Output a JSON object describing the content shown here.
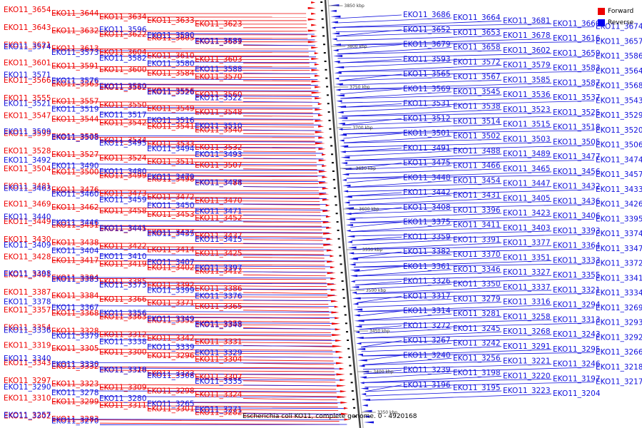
{
  "legend": {
    "items": [
      {
        "label": "Forward",
        "color": "#ee0000"
      },
      {
        "label": "Reverse",
        "color": "#0000ee"
      }
    ]
  },
  "caption": {
    "genome": "Escherichia coli KO11, complete genome.",
    "range": "0 - 4920168"
  },
  "colors": {
    "forward": "#ee0000",
    "reverse": "#1010dd",
    "axis": "#777777"
  },
  "scale_ticks": [
    "3850 kbp",
    "3800 kbp",
    "3750 kbp",
    "3700 kbp",
    "3650 kbp",
    "3600 kbp",
    "3550 kbp",
    "3500 kbp",
    "3450 kbp",
    "3400 kbp",
    "3350 kbp"
  ],
  "forward_genes": [
    "EKO11_3654",
    "EKO11_3644",
    "EKO11_3634",
    "EKO11_3633",
    "EKO11_3623",
    "EKO11_3643",
    "EKO11_3632",
    "EKO11_3622",
    "EKO11_3605",
    "EKO11_3631",
    "EKO11_3621",
    "EKO11_3613",
    "EKO11_3604",
    "EKO11_3610",
    "EKO11_3603",
    "EKO11_3601",
    "EKO11_3591",
    "EKO11_3600",
    "EKO11_3584",
    "EKO11_3570",
    "EKO11_3566",
    "EKO11_3563",
    "EKO11_3562",
    "EKO11_3556",
    "EKO11_3560",
    "EKO11_3555",
    "EKO11_3557",
    "EKO11_3550",
    "EKO11_3549",
    "EKO11_3548",
    "EKO11_3547",
    "EKO11_3544",
    "EKO11_3542",
    "EKO11_3541",
    "EKO11_3540",
    "EKO11_3539",
    "EKO11_3535",
    "EKO11_3534",
    "EKO11_3533",
    "EKO11_3532",
    "EKO11_3528",
    "EKO11_3527",
    "EKO11_3524",
    "EKO11_3511",
    "EKO11_3507",
    "EKO11_3504",
    "EKO11_3500",
    "EKO11_3499",
    "EKO11_3498",
    "EKO11_3484",
    "EKO11_3481",
    "EKO11_3476",
    "EKO11_3473",
    "EKO11_3472",
    "EKO11_3470",
    "EKO11_3469",
    "EKO11_3462",
    "EKO11_3458",
    "EKO11_3453",
    "EKO11_3452",
    "EKO11_3449",
    "EKO11_3451",
    "EKO11_3445",
    "EKO11_3427",
    "EKO11_3437",
    "EKO11_3430",
    "EKO11_3438",
    "EKO11_3422",
    "EKO11_3414",
    "EKO11_3425",
    "EKO11_3428",
    "EKO11_3417",
    "EKO11_3419",
    "EKO11_3402",
    "EKO11_3412",
    "EKO11_3401",
    "EKO11_3394",
    "EKO11_3385",
    "EKO11_3392",
    "EKO11_3386",
    "EKO11_3387",
    "EKO11_3384",
    "EKO11_3366",
    "EKO11_3371",
    "EKO11_3365",
    "EKO11_3357",
    "EKO11_3368",
    "EKO11_3363",
    "EKO11_3352",
    "EKO11_3353",
    "EKO11_3354",
    "EKO11_3328",
    "EKO11_3312",
    "EKO11_3342",
    "EKO11_3331",
    "EKO11_3319",
    "EKO11_3305",
    "EKO11_3300",
    "EKO11_3296",
    "EKO11_3304",
    "EKO11_3343",
    "EKO11_3332",
    "EKO11_3320",
    "EKO11_3322",
    "EKO11_3307",
    "EKO11_3297",
    "EKO11_3323",
    "EKO11_3309",
    "EKO11_3298",
    "EKO11_3324",
    "EKO11_3310",
    "EKO11_3299",
    "EKO11_3311",
    "EKO11_3301",
    "EKO11_3282",
    "EKO11_3302",
    "EKO11_3283"
  ],
  "reverse_genes": [
    "EKO11_3596",
    "EKO11_3590",
    "EKO11_3589",
    "EKO11_3574",
    "EKO11_3573",
    "EKO11_3582",
    "EKO11_3580",
    "EKO11_3588",
    "EKO11_3571",
    "EKO11_3576",
    "EKO11_3530",
    "EKO11_3526",
    "EKO11_3522",
    "EKO11_3521",
    "EKO11_3519",
    "EKO11_3517",
    "EKO11_3516",
    "EKO11_3510",
    "EKO11_3509",
    "EKO11_3508",
    "EKO11_3495",
    "EKO11_3494",
    "EKO11_3493",
    "EKO11_3492",
    "EKO11_3490",
    "EKO11_3480",
    "EKO11_3479",
    "EKO11_3478",
    "EKO11_3463",
    "EKO11_3460",
    "EKO11_3459",
    "EKO11_3450",
    "EKO11_3471",
    "EKO11_3440",
    "EKO11_3446",
    "EKO11_3441",
    "EKO11_3435",
    "EKO11_3415",
    "EKO11_3409",
    "EKO11_3404",
    "EKO11_3410",
    "EKO11_3407",
    "EKO11_3397",
    "EKO11_3398",
    "EKO11_3383",
    "EKO11_3373",
    "EKO11_3399",
    "EKO11_3376",
    "EKO11_3378",
    "EKO11_3367",
    "EKO11_3356",
    "EKO11_3349",
    "EKO11_3348",
    "EKO11_3336",
    "EKO11_3379",
    "EKO11_3338",
    "EKO11_3339",
    "EKO11_3329",
    "EKO11_3340",
    "EKO11_3330",
    "EKO11_3318",
    "EKO11_3308",
    "EKO11_3335",
    "EKO11_3290",
    "EKO11_3278",
    "EKO11_3280",
    "EKO11_3265",
    "EKO11_3271",
    "EKO11_3257",
    "EKO11_3270",
    "EKO11_3686",
    "EKO11_3664",
    "EKO11_3681",
    "EKO11_3660",
    "EKO11_3674",
    "EKO11_3652",
    "EKO11_3653",
    "EKO11_3678",
    "EKO11_3616",
    "EKO11_3657",
    "EKO11_3679",
    "EKO11_3658",
    "EKO11_3602",
    "EKO11_3659",
    "EKO11_3586",
    "EKO11_3593",
    "EKO11_3572",
    "EKO11_3579",
    "EKO11_3583",
    "EKO11_3564",
    "EKO11_3565",
    "EKO11_3567",
    "EKO11_3585",
    "EKO11_3587",
    "EKO11_3568",
    "EKO11_3569",
    "EKO11_3545",
    "EKO11_3536",
    "EKO11_3537",
    "EKO11_3543",
    "EKO11_3531",
    "EKO11_3538",
    "EKO11_3523",
    "EKO11_3525",
    "EKO11_3529",
    "EKO11_3512",
    "EKO11_3514",
    "EKO11_3515",
    "EKO11_3518",
    "EKO11_3520",
    "EKO11_3501",
    "EKO11_3502",
    "EKO11_3503",
    "EKO11_3505",
    "EKO11_3506",
    "EKO11_3491",
    "EKO11_3488",
    "EKO11_3489",
    "EKO11_3477",
    "EKO11_3474",
    "EKO11_3475",
    "EKO11_3466",
    "EKO11_3465",
    "EKO11_3456",
    "EKO11_3457",
    "EKO11_3448",
    "EKO11_3454",
    "EKO11_3447",
    "EKO11_3432",
    "EKO11_3433",
    "EKO11_3442",
    "EKO11_3431",
    "EKO11_3405",
    "EKO11_3436",
    "EKO11_3426",
    "EKO11_3408",
    "EKO11_3396",
    "EKO11_3423",
    "EKO11_3406",
    "EKO11_3395",
    "EKO11_3375",
    "EKO11_3411",
    "EKO11_3403",
    "EKO11_3393",
    "EKO11_3374",
    "EKO11_3359",
    "EKO11_3391",
    "EKO11_3377",
    "EKO11_3364",
    "EKO11_3347",
    "EKO11_3382",
    "EKO11_3370",
    "EKO11_3351",
    "EKO11_3333",
    "EKO11_3372",
    "EKO11_3361",
    "EKO11_3346",
    "EKO11_3327",
    "EKO11_3355",
    "EKO11_3341",
    "EKO11_3326",
    "EKO11_3350",
    "EKO11_3337",
    "EKO11_3321",
    "EKO11_3334",
    "EKO11_3317",
    "EKO11_3279",
    "EKO11_3316",
    "EKO11_3294",
    "EKO11_3269",
    "EKO11_3314",
    "EKO11_3281",
    "EKO11_3258",
    "EKO11_3313",
    "EKO11_3293",
    "EKO11_3272",
    "EKO11_3245",
    "EKO11_3268",
    "EKO11_3243",
    "EKO11_3292",
    "EKO11_3267",
    "EKO11_3242",
    "EKO11_3291",
    "EKO11_3295",
    "EKO11_3266",
    "EKO11_3240",
    "EKO11_3256",
    "EKO11_3221",
    "EKO11_3246",
    "EKO11_3218",
    "EKO11_3239",
    "EKO11_3198",
    "EKO11_3220",
    "EKO11_3197",
    "EKO11_3217",
    "EKO11_3196",
    "EKO11_3195",
    "EKO11_3223",
    "EKO11_3204"
  ]
}
